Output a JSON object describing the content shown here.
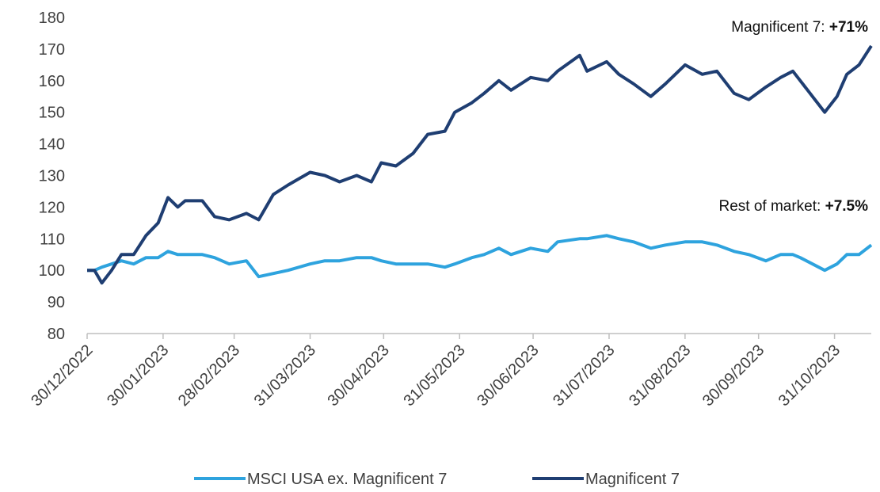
{
  "chart_data": {
    "type": "line",
    "annotations": [
      {
        "text": "Magnificent 7: ",
        "highlight": "+71%"
      },
      {
        "text": "Rest of market: ",
        "highlight": "+7.5%"
      }
    ],
    "x": [
      "30/12/2022",
      "02/01/2023",
      "05/01/2023",
      "09/01/2023",
      "13/01/2023",
      "18/01/2023",
      "23/01/2023",
      "28/01/2023",
      "01/02/2023",
      "05/02/2023",
      "08/02/2023",
      "15/02/2023",
      "20/02/2023",
      "26/02/2023",
      "05/03/2023",
      "10/03/2023",
      "16/03/2023",
      "22/03/2023",
      "31/03/2023",
      "06/04/2023",
      "12/04/2023",
      "19/04/2023",
      "25/04/2023",
      "29/04/2023",
      "05/05/2023",
      "12/05/2023",
      "18/05/2023",
      "25/05/2023",
      "29/05/2023",
      "05/06/2023",
      "10/06/2023",
      "16/06/2023",
      "21/06/2023",
      "29/06/2023",
      "06/07/2023",
      "10/07/2023",
      "19/07/2023",
      "22/07/2023",
      "30/07/2023",
      "04/08/2023",
      "10/08/2023",
      "17/08/2023",
      "23/08/2023",
      "31/08/2023",
      "07/09/2023",
      "13/09/2023",
      "20/09/2023",
      "26/09/2023",
      "03/10/2023",
      "09/10/2023",
      "14/10/2023",
      "17/10/2023",
      "22/10/2023",
      "27/10/2023",
      "01/11/2023",
      "05/11/2023",
      "10/11/2023",
      "15/11/2023"
    ],
    "series": [
      {
        "name": "MSCI USA ex. Magnificent 7",
        "color": "#2ea3de",
        "values": [
          100,
          100,
          101,
          102,
          103,
          102,
          104,
          104,
          106,
          105,
          105,
          105,
          104,
          102,
          103,
          98,
          99,
          100,
          102,
          103,
          103,
          104,
          104,
          103,
          102,
          102,
          102,
          101,
          102,
          104,
          105,
          107,
          105,
          107,
          106,
          109,
          110,
          110,
          111,
          110,
          109,
          107,
          108,
          109,
          109,
          108,
          106,
          105,
          103,
          105,
          105,
          104,
          102,
          100,
          102,
          105,
          105,
          108
        ]
      },
      {
        "name": "Magnificent 7",
        "color": "#1f3e72",
        "values": [
          100,
          100,
          96,
          100,
          105,
          105,
          111,
          115,
          123,
          120,
          122,
          122,
          117,
          116,
          118,
          116,
          124,
          127,
          131,
          130,
          128,
          130,
          128,
          134,
          133,
          137,
          143,
          144,
          150,
          153,
          156,
          160,
          157,
          161,
          160,
          163,
          168,
          163,
          166,
          162,
          159,
          155,
          159,
          165,
          162,
          163,
          156,
          154,
          158,
          161,
          163,
          160,
          155,
          150,
          155,
          162,
          165,
          171
        ]
      }
    ],
    "xlim": [
      "30/12/2022",
      "15/11/2023"
    ],
    "xticks": [
      "30/12/2022",
      "30/01/2023",
      "28/02/2023",
      "31/03/2023",
      "30/04/2023",
      "31/05/2023",
      "30/06/2023",
      "31/07/2023",
      "31/08/2023",
      "30/09/2023",
      "31/10/2023"
    ],
    "ylim": [
      80,
      180
    ],
    "yticks": [
      80,
      90,
      100,
      110,
      120,
      130,
      140,
      150,
      160,
      170,
      180
    ],
    "grid": false,
    "legend": "bottom"
  }
}
